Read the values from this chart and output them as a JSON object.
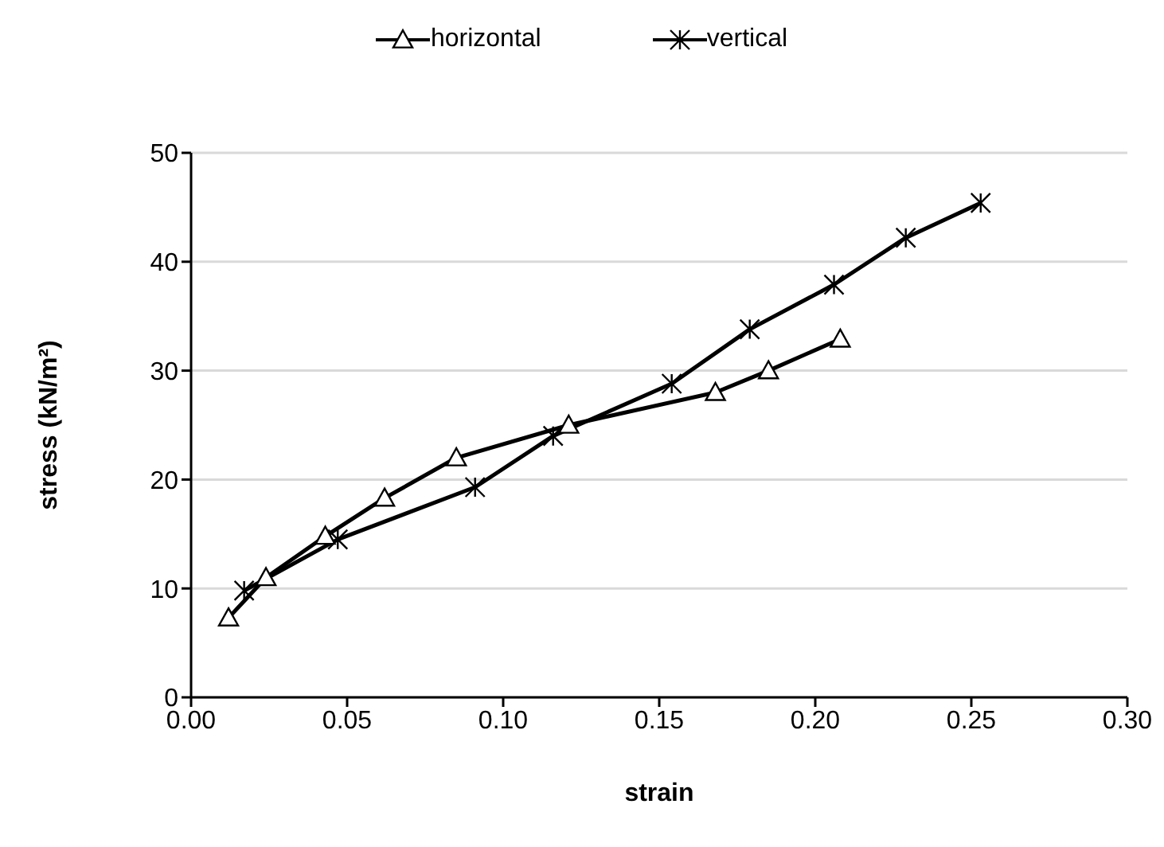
{
  "chart_data": {
    "type": "line",
    "xlabel": "strain",
    "ylabel": "stress (kN/m²)",
    "xlim": [
      0,
      0.3
    ],
    "xticks": [
      {
        "value": 0,
        "label": "0.00"
      },
      {
        "value": 0.05,
        "label": "0.05"
      },
      {
        "value": 0.1,
        "label": "0.10"
      },
      {
        "value": 0.15,
        "label": "0.15"
      },
      {
        "value": 0.2,
        "label": "0.20"
      },
      {
        "value": 0.25,
        "label": "0.25"
      },
      {
        "value": 0.3,
        "label": "0.30"
      }
    ],
    "ylim": [
      0,
      50
    ],
    "yticks": [
      0,
      10,
      20,
      30,
      40,
      50
    ],
    "grid": "y",
    "legend": "top",
    "line_style": "solid",
    "series": [
      {
        "name": "horizontal",
        "color": "#000000",
        "marker": "triangle",
        "x": [
          0.012,
          0.024,
          0.043,
          0.062,
          0.085,
          0.121,
          0.168,
          0.185,
          0.208
        ],
        "values": [
          7.3,
          11.0,
          14.8,
          18.3,
          22.0,
          25.0,
          28.0,
          30.0,
          32.9
        ]
      },
      {
        "name": "vertical",
        "color": "#000000",
        "marker": "cross",
        "x": [
          0.017,
          0.047,
          0.091,
          0.116,
          0.154,
          0.179,
          0.206,
          0.229,
          0.253
        ],
        "values": [
          9.8,
          14.5,
          19.3,
          24.0,
          28.8,
          33.8,
          37.9,
          42.2,
          45.4
        ]
      }
    ]
  }
}
